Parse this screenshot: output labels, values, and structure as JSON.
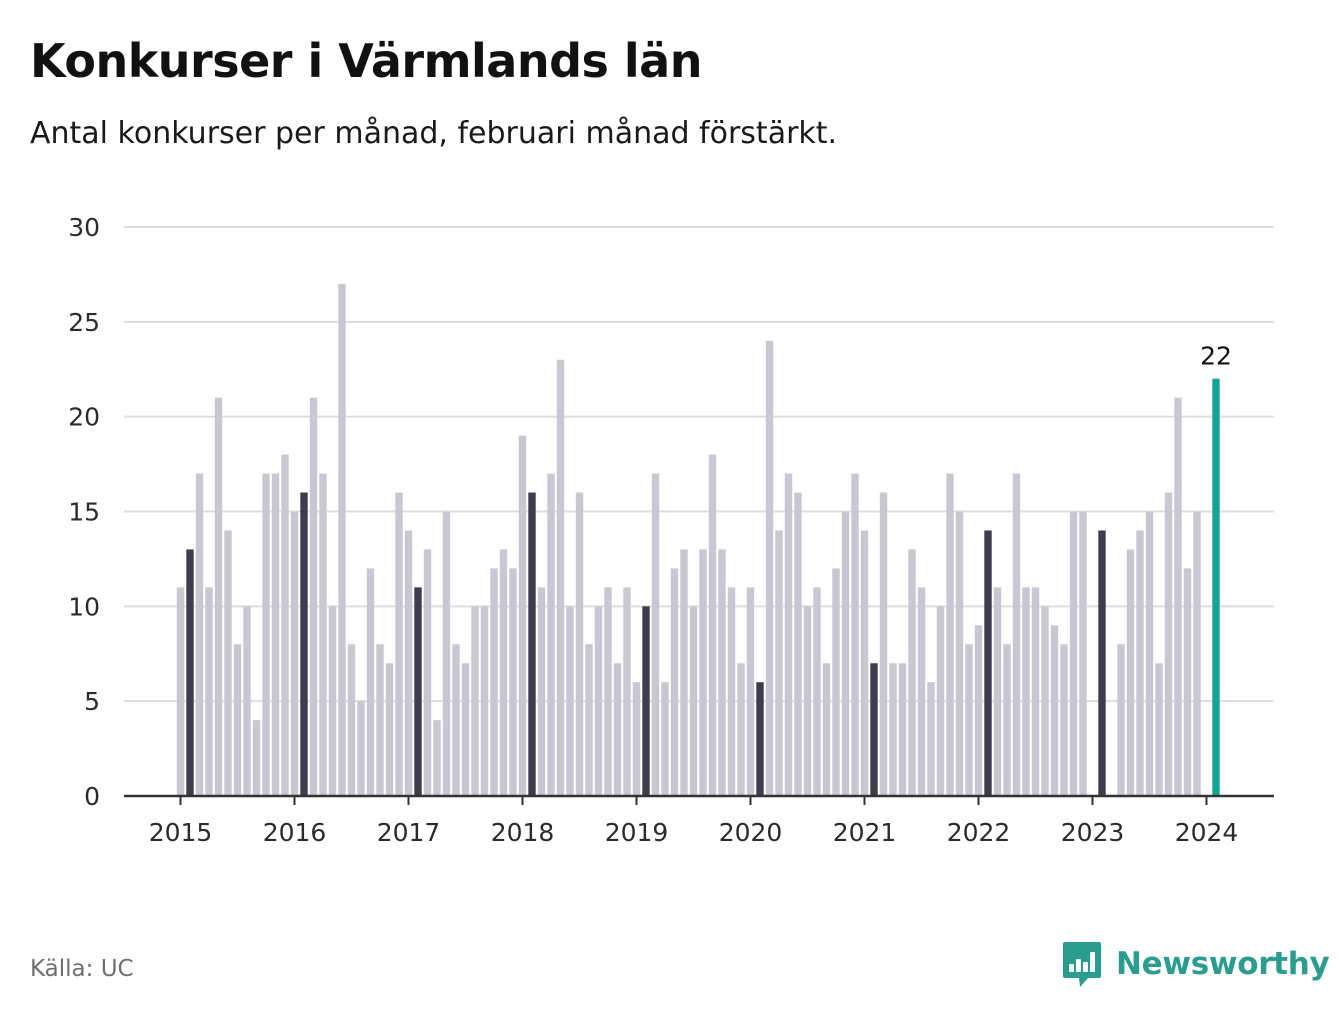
{
  "title": "Konkurser i Värmlands län",
  "subtitle": "Antal konkurser per månad, februari månad förstärkt.",
  "source": "Källa: UC",
  "brand": {
    "name": "Newsworthy",
    "icon": "bar-chart-speech-bubble-icon"
  },
  "colors": {
    "bar": "#c8c7d2",
    "highlight": "#3f3d4d",
    "latest": "#12a596",
    "grid": "#dddddd",
    "axis": "#333333"
  },
  "chart_data": {
    "type": "bar",
    "title": "Konkurser i Värmlands län",
    "subtitle": "Antal konkurser per månad, februari månad förstärkt.",
    "xlabel": "",
    "ylabel": "",
    "ylim": [
      0,
      30
    ],
    "yticks": [
      0,
      5,
      10,
      15,
      20,
      25,
      30
    ],
    "xticks": [
      "2015",
      "2016",
      "2017",
      "2018",
      "2019",
      "2020",
      "2021",
      "2022",
      "2023",
      "2024"
    ],
    "grid": true,
    "start": "2015-01",
    "end": "2024-02",
    "highlight_month": "februari",
    "latest_label": "22",
    "values": [
      11,
      13,
      17,
      11,
      21,
      14,
      8,
      10,
      4,
      17,
      17,
      18,
      15,
      16,
      21,
      17,
      10,
      27,
      8,
      5,
      12,
      8,
      7,
      16,
      14,
      11,
      13,
      4,
      15,
      8,
      7,
      10,
      10,
      12,
      13,
      12,
      19,
      16,
      11,
      17,
      23,
      10,
      16,
      8,
      10,
      11,
      7,
      11,
      6,
      10,
      17,
      6,
      12,
      13,
      10,
      13,
      18,
      13,
      11,
      7,
      11,
      6,
      24,
      14,
      17,
      16,
      10,
      11,
      7,
      12,
      15,
      17,
      14,
      7,
      16,
      7,
      7,
      13,
      11,
      6,
      10,
      17,
      15,
      8,
      9,
      14,
      11,
      8,
      17,
      11,
      11,
      10,
      9,
      8,
      15,
      15,
      0,
      14,
      0,
      8,
      13,
      14,
      15,
      7,
      16,
      21,
      12,
      15,
      0,
      22
    ]
  }
}
